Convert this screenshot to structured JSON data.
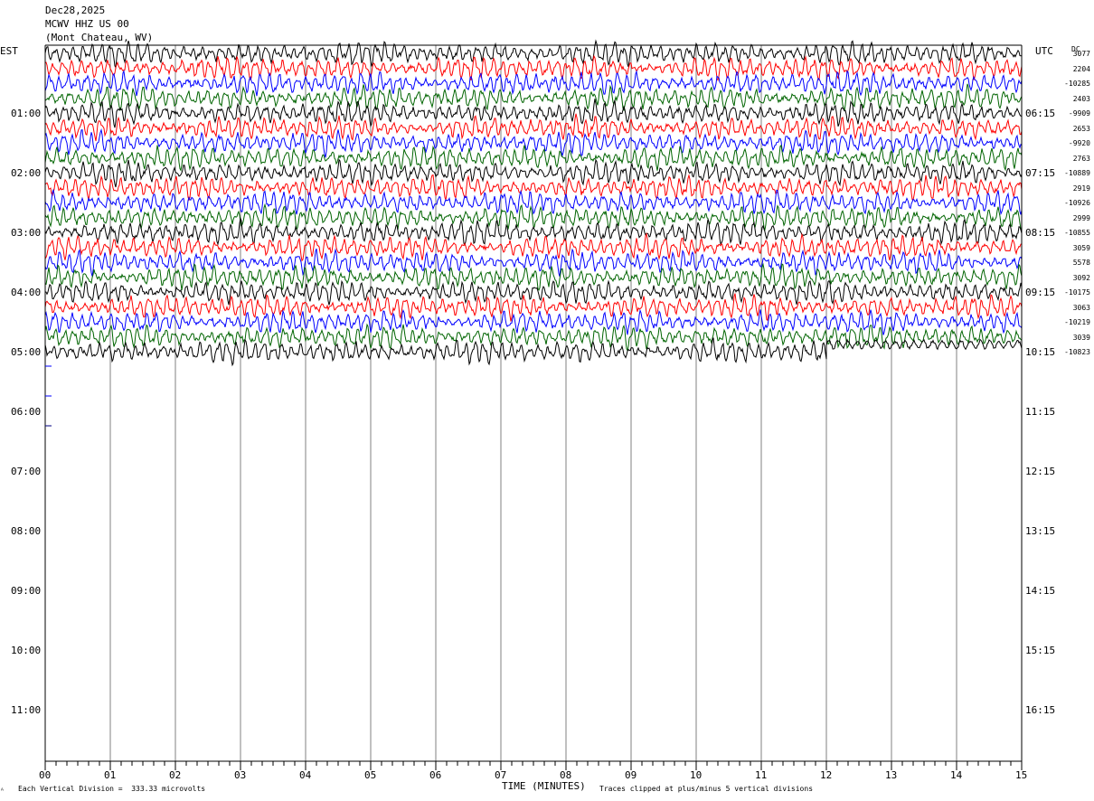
{
  "header": {
    "date": "Dec28,2025",
    "station": "MCWV HHZ US 00",
    "location": "(Mont Chateau, WV)"
  },
  "left_timezone": "EST",
  "right_timezone": "UTC",
  "dc_label": "DC",
  "footer": {
    "scale_note": "Each Vertical Division =  333.33 microvolts",
    "xlabel": "TIME (MINUTES)",
    "clip_note": "Traces clipped at plus/minus 5 vertical divisions"
  },
  "colors": {
    "trace_cycle": [
      "#000000",
      "#ff0000",
      "#0000ff",
      "#006400"
    ],
    "grid": "#808080",
    "marker": "#0000ff"
  },
  "chart_data": {
    "type": "line",
    "title": "MCWV HHZ US 00",
    "xlabel": "TIME (MINUTES)",
    "x_ticks": [
      "00",
      "01",
      "02",
      "03",
      "04",
      "05",
      "06",
      "07",
      "08",
      "09",
      "10",
      "11",
      "12",
      "13",
      "14",
      "15"
    ],
    "xlim": [
      0,
      15
    ],
    "left_hour_labels": [
      "01:00",
      "02:00",
      "03:00",
      "04:00",
      "05:00",
      "06:00",
      "07:00",
      "08:00",
      "09:00",
      "10:00",
      "11:00"
    ],
    "right_hour_labels": [
      "06:15",
      "07:15",
      "08:15",
      "09:15",
      "10:15",
      "11:15",
      "12:15",
      "13:15",
      "14:15",
      "15:15",
      "16:15"
    ],
    "rows_per_hour": 4,
    "minutes_per_row": 15,
    "trace_rows_total": 21,
    "last_row_minutes": 12,
    "dc_offsets": [
      "3077",
      "2204",
      "-10285",
      "2403",
      "-9909",
      "2653",
      "-9920",
      "2763",
      "-10889",
      "2919",
      "-10926",
      "2999",
      "-10855",
      "3059",
      "5578",
      "3092",
      "-10175",
      "3063",
      "-10219",
      "3039",
      "-10823"
    ]
  }
}
